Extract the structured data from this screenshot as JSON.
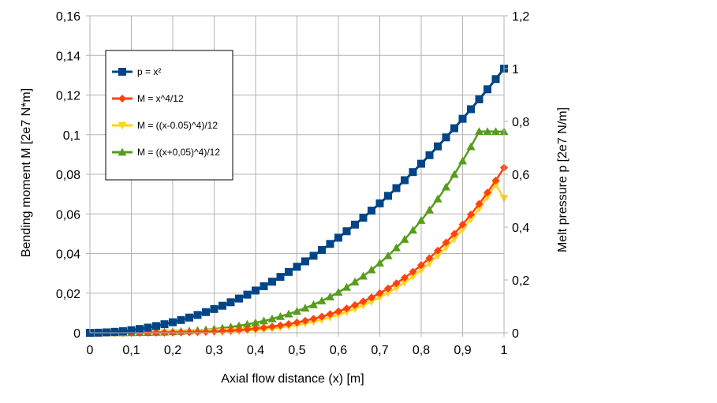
{
  "chart_data": {
    "type": "line",
    "xlabel": "Axial flow distance (x)   [m]",
    "ylabel": "Bending moment M   [2e7 N*m]",
    "y2label": "Melt pressure p [2e7 N/m]",
    "xlim": [
      0,
      1
    ],
    "ylim": [
      0,
      0.16
    ],
    "y2lim": [
      0,
      1.2
    ],
    "x_ticks": [
      "0",
      "0,1",
      "0,2",
      "0,3",
      "0,4",
      "0,5",
      "0,6",
      "0,7",
      "0,8",
      "0,9",
      "1"
    ],
    "y_ticks": [
      "0",
      "0,02",
      "0,04",
      "0,06",
      "0,08",
      "0,1",
      "0,12",
      "0,14",
      "0,16"
    ],
    "y2_ticks": [
      "0",
      "0,2",
      "0,4",
      "0,6",
      "0,8",
      "1",
      "1,2"
    ],
    "grid": true,
    "legend_position": "top-left",
    "x": [
      0,
      0.02,
      0.04,
      0.06,
      0.08,
      0.1,
      0.12,
      0.14,
      0.16,
      0.18,
      0.2,
      0.22,
      0.24,
      0.26,
      0.28,
      0.3,
      0.32,
      0.34,
      0.36,
      0.38,
      0.4,
      0.42,
      0.44,
      0.46,
      0.48,
      0.5,
      0.52,
      0.54,
      0.56,
      0.58,
      0.6,
      0.62,
      0.64,
      0.66,
      0.68,
      0.7,
      0.72,
      0.74,
      0.76,
      0.78,
      0.8,
      0.82,
      0.84,
      0.86,
      0.88,
      0.9,
      0.92,
      0.94,
      0.96,
      0.98,
      1
    ],
    "series": [
      {
        "name": "p = x²",
        "axis": "right",
        "color": "#004586",
        "marker": "square",
        "values": [
          0,
          0.0004,
          0.0016,
          0.0036,
          0.0064,
          0.01,
          0.0144,
          0.0196,
          0.0256,
          0.0324,
          0.04,
          0.0484,
          0.0576,
          0.0676,
          0.0784,
          0.09,
          0.1024,
          0.1156,
          0.1296,
          0.1444,
          0.16,
          0.1764,
          0.1936,
          0.2116,
          0.2304,
          0.25,
          0.2704,
          0.2916,
          0.3136,
          0.3364,
          0.36,
          0.3844,
          0.4096,
          0.4356,
          0.4624,
          0.49,
          0.5184,
          0.5476,
          0.5776,
          0.6084,
          0.64,
          0.6724,
          0.7056,
          0.7396,
          0.7744,
          0.81,
          0.8464,
          0.8836,
          0.9216,
          0.9604,
          1
        ]
      },
      {
        "name": "M = x^4/12",
        "axis": "left",
        "color": "#ff420e",
        "marker": "diamond",
        "values": [
          0,
          0,
          0,
          1e-06,
          3e-06,
          8e-06,
          1.7e-05,
          3.2e-05,
          5.5e-05,
          8.7e-05,
          0.000133,
          0.000195,
          0.000276,
          0.000381,
          0.000512,
          0.000675,
          0.000874,
          0.001114,
          0.0014,
          0.001738,
          0.002133,
          0.002593,
          0.003123,
          0.003731,
          0.004424,
          0.005208,
          0.006093,
          0.007086,
          0.008195,
          0.00943,
          0.0108,
          0.012313,
          0.01398,
          0.015813,
          0.017819,
          0.020008,
          0.022395,
          0.024987,
          0.027801,
          0.030844,
          0.034133,
          0.037681,
          0.041496,
          0.045582,
          0.049969,
          0.054675,
          0.0597,
          0.065067,
          0.070779,
          0.076848,
          0.083333
        ]
      },
      {
        "name": "M = ((x-0.05)^4)/12",
        "axis": "left",
        "color": "#ffd320",
        "marker": "triangle-down",
        "values": [
          1e-06,
          0,
          0,
          0,
          0,
          1e-06,
          2e-06,
          5e-06,
          1.2e-05,
          2.4e-05,
          4.2e-05,
          7e-05,
          0.000111,
          0.000167,
          0.000243,
          0.000342,
          0.000472,
          0.000635,
          0.000839,
          0.00109,
          0.001401,
          0.001765,
          0.002195,
          0.002699,
          0.003285,
          0.00396,
          0.004738,
          0.005627,
          0.006635,
          0.007778,
          0.009151,
          0.010556,
          0.012125,
          0.013857,
          0.015757,
          0.017868,
          0.020172,
          0.022688,
          0.025458,
          0.028421,
          0.031641,
          0.035157,
          0.038945,
          0.043038,
          0.047449,
          0.0522,
          0.057301,
          0.062768,
          0.06862,
          0.074872,
          0.067873
        ]
      },
      {
        "name": "M = ((x+0,05)^4)/12",
        "axis": "left",
        "color": "#579d1c",
        "marker": "triangle-up",
        "values": [
          1e-06,
          2e-06,
          7e-06,
          1.6e-05,
          3.4e-05,
          6.3e-05,
          0.000106,
          0.00017,
          0.000259,
          0.000381,
          0.000527,
          0.000709,
          0.000942,
          0.001217,
          0.001549,
          0.001942,
          0.002402,
          0.00294,
          0.003566,
          0.004284,
          0.005093,
          0.006009,
          0.00705,
          0.008212,
          0.009505,
          0.010916,
          0.012479,
          0.014209,
          0.016111,
          0.018191,
          0.020484,
          0.022995,
          0.025701,
          0.028627,
          0.031793,
          0.03522,
          0.038918,
          0.042905,
          0.047188,
          0.051787,
          0.056713,
          0.061977,
          0.067597,
          0.073592,
          0.079972,
          0.086758,
          0.093953,
          0.10158,
          0.10158,
          0.10158,
          0.10153
        ]
      }
    ]
  }
}
